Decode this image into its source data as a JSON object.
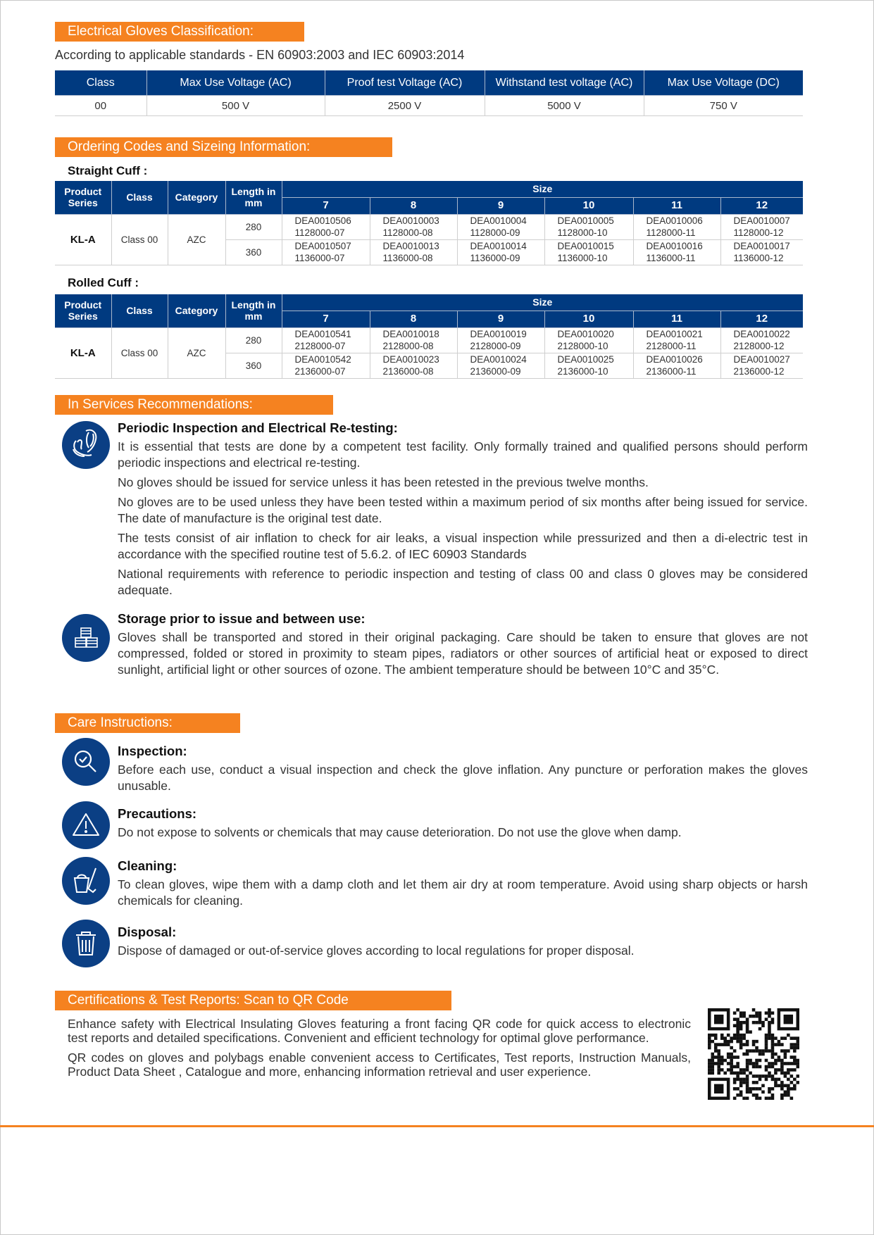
{
  "classification": {
    "title": "Electrical Gloves Classification:",
    "subtitle": "According to applicable standards - EN 60903:2003 and IEC 60903:2014",
    "headers": [
      "Class",
      "Max Use Voltage (AC)",
      "Proof test Voltage (AC)",
      "Withstand test voltage (AC)",
      "Max Use Voltage (DC)"
    ],
    "row": [
      "00",
      "500 V",
      "2500 V",
      "5000 V",
      "750 V"
    ]
  },
  "ordering": {
    "title": "Ordering Codes and Sizeing Information:",
    "headers": {
      "series": "Product Series",
      "class": "Class",
      "category": "Category",
      "length": "Length in mm",
      "size": "Size",
      "sizes": [
        "7",
        "8",
        "9",
        "10",
        "11",
        "12"
      ]
    },
    "straight": {
      "label": "Straight Cuff :",
      "series": "KL-A",
      "class": "Class 00",
      "category": "AZC",
      "rows": [
        {
          "length": "280",
          "codes": [
            [
              "DEA0010506",
              "1128000-07"
            ],
            [
              "DEA0010003",
              "1128000-08"
            ],
            [
              "DEA0010004",
              "1128000-09"
            ],
            [
              "DEA0010005",
              "1128000-10"
            ],
            [
              "DEA0010006",
              "1128000-11"
            ],
            [
              "DEA0010007",
              "1128000-12"
            ]
          ]
        },
        {
          "length": "360",
          "codes": [
            [
              "DEA0010507",
              "1136000-07"
            ],
            [
              "DEA0010013",
              "1136000-08"
            ],
            [
              "DEA0010014",
              "1136000-09"
            ],
            [
              "DEA0010015",
              "1136000-10"
            ],
            [
              "DEA0010016",
              "1136000-11"
            ],
            [
              "DEA0010017",
              "1136000-12"
            ]
          ]
        }
      ]
    },
    "rolled": {
      "label": "Rolled Cuff :",
      "series": "KL-A",
      "class": "Class 00",
      "category": "AZC",
      "rows": [
        {
          "length": "280",
          "codes": [
            [
              "DEA0010541",
              "2128000-07"
            ],
            [
              "DEA0010018",
              "2128000-08"
            ],
            [
              "DEA0010019",
              "2128000-09"
            ],
            [
              "DEA0010020",
              "2128000-10"
            ],
            [
              "DEA0010021",
              "2128000-11"
            ],
            [
              "DEA0010022",
              "2128000-12"
            ]
          ]
        },
        {
          "length": "360",
          "codes": [
            [
              "DEA0010542",
              "2136000-07"
            ],
            [
              "DEA0010023",
              "2136000-08"
            ],
            [
              "DEA0010024",
              "2136000-09"
            ],
            [
              "DEA0010025",
              "2136000-10"
            ],
            [
              "DEA0010026",
              "2136000-11"
            ],
            [
              "DEA0010027",
              "2136000-12"
            ]
          ]
        }
      ]
    }
  },
  "services": {
    "title": "In Services Recommendations:",
    "periodic": {
      "icon": "gloves-icon",
      "heading": "Periodic Inspection and Electrical Re-testing:",
      "paragraphs": [
        "It is essential that tests are done by a competent test facility. Only formally trained and qualified persons should perform periodic inspections and electrical re-testing.",
        "No gloves should be issued for service unless it has been retested in the previous twelve months.",
        "No gloves are to be used unless they have been tested within a maximum period of six months after being issued for service. The date of manufacture is the original test date.",
        "The tests consist of air inflation to check for air leaks, a visual inspection while pressurized and then a di-electric test in accordance with the specified routine test of 5.6.2. of IEC 60903 Standards",
        "National requirements with reference to periodic inspection and testing of class 00 and class 0 gloves may be considered adequate."
      ]
    },
    "storage": {
      "icon": "storage-boxes-icon",
      "heading": "Storage prior to issue and between use:",
      "paragraphs": [
        "Gloves shall be transported and stored in their original packaging. Care should be taken to ensure that gloves are not compressed, folded or stored in proximity to steam pipes, radiators or other sources of artificial heat or exposed to direct sunlight, artificial light or other sources of ozone. The ambient temperature should be between 10°C and 35°C."
      ]
    }
  },
  "care": {
    "title": "Care Instructions:",
    "items": [
      {
        "icon": "magnifier-check-icon",
        "heading": "Inspection:",
        "text": "Before each use, conduct a visual inspection and check the glove inflation. Any puncture or perforation makes the gloves unusable."
      },
      {
        "icon": "warning-icon",
        "heading": "Precautions:",
        "text": "Do not expose to solvents or chemicals that may cause deterioration. Do not use the glove when damp."
      },
      {
        "icon": "cleaning-icon",
        "heading": "Cleaning:",
        "text": "To clean gloves, wipe them with a damp cloth and let them air dry at room temperature. Avoid using sharp objects or harsh chemicals for cleaning."
      },
      {
        "icon": "trash-bin-icon",
        "heading": "Disposal:",
        "text": "Dispose of damaged or out-of-service gloves according to local regulations for proper disposal."
      }
    ]
  },
  "certifications": {
    "title": "Certifications & Test Reports:  Scan to QR Code",
    "paragraphs": [
      "Enhance safety with Electrical Insulating Gloves featuring a front facing QR code for quick access to electronic test reports and detailed specifications. Convenient and efficient technology for optimal glove performance.",
      "QR codes on gloves and polybags enable convenient access to Certificates, Test reports, Instruction Manuals, Product Data Sheet , Catalogue and more, enhancing information retrieval and user experience."
    ],
    "qr_icon": "qr-code"
  },
  "colors": {
    "accent": "#f58220",
    "navy": "#003a80"
  }
}
